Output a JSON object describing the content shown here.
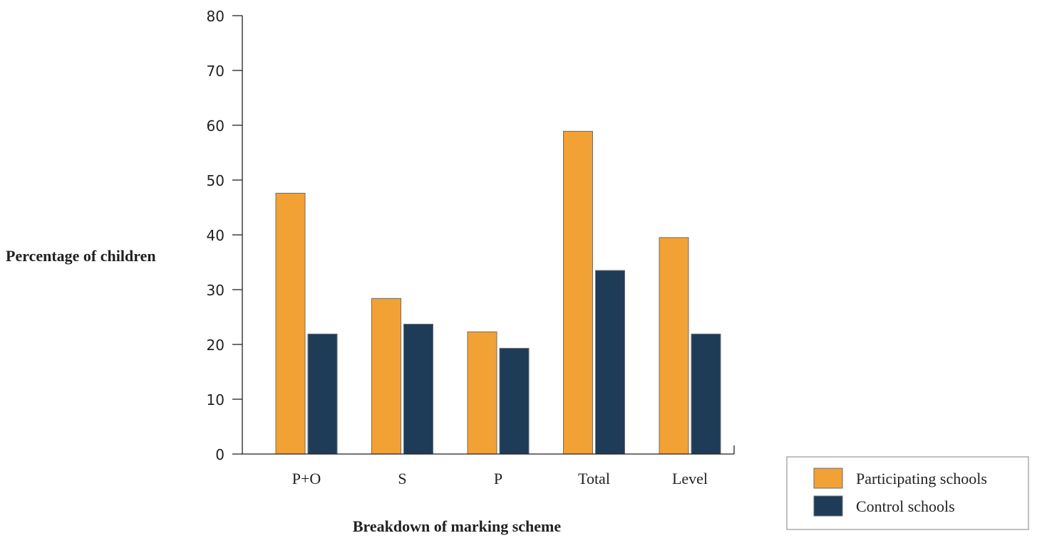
{
  "chart_data": {
    "type": "bar",
    "categories": [
      "P+O",
      "S",
      "P",
      "Total",
      "Level"
    ],
    "series": [
      {
        "name": "Participating schools",
        "color": "#f2a134",
        "values": [
          47.6,
          28.4,
          22.3,
          58.9,
          39.5
        ]
      },
      {
        "name": "Control schools",
        "color": "#1e3c58",
        "values": [
          21.9,
          23.7,
          19.3,
          33.5,
          21.9
        ]
      }
    ],
    "xlabel": "Breakdown of marking scheme",
    "ylabel": "Percentage of children",
    "ylim": [
      0,
      80
    ],
    "yticks": [
      0,
      10,
      20,
      30,
      40,
      50,
      60,
      70,
      80
    ],
    "grid": false,
    "legend_position": "bottom-right"
  }
}
